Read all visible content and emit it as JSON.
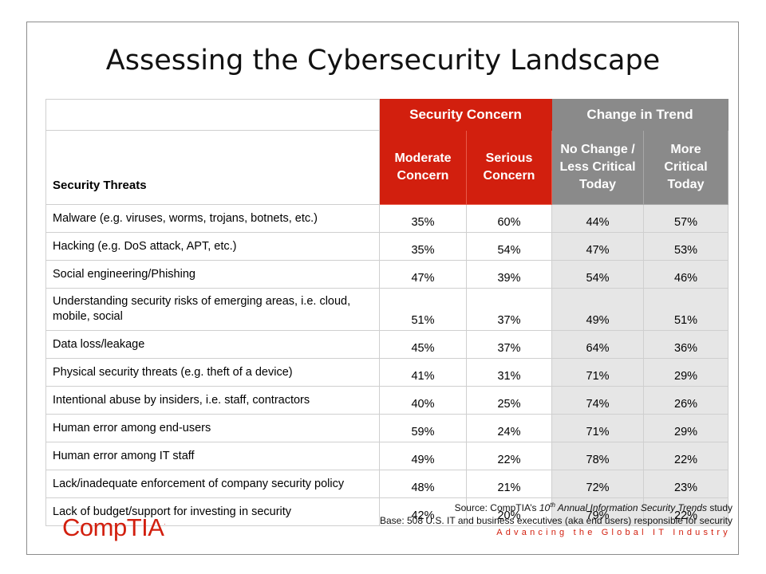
{
  "title": "Assessing the Cybersecurity Landscape",
  "table": {
    "groups": {
      "security_concern": "Security Concern",
      "change_in_trend": "Change in Trend"
    },
    "headers": {
      "threat": "Security Threats",
      "moderate": [
        "Moderate",
        "Concern"
      ],
      "serious": [
        "Serious",
        "Concern"
      ],
      "no_change": [
        "No Change /",
        "Less Critical",
        "Today"
      ],
      "more_critical": [
        "More",
        "Critical",
        "Today"
      ]
    },
    "rows": [
      {
        "threat": "Malware (e.g. viruses, worms, trojans, botnets, etc.)",
        "moderate": "35%",
        "serious": "60%",
        "no_change": "44%",
        "more": "57%"
      },
      {
        "threat": "Hacking (e.g. DoS attack, APT, etc.)",
        "moderate": "35%",
        "serious": "54%",
        "no_change": "47%",
        "more": "53%"
      },
      {
        "threat": "Social engineering/Phishing",
        "moderate": "47%",
        "serious": "39%",
        "no_change": "54%",
        "more": "46%"
      },
      {
        "threat": "Understanding security risks of emerging areas, i.e. cloud, mobile, social",
        "moderate": "51%",
        "serious": "37%",
        "no_change": "49%",
        "more": "51%"
      },
      {
        "threat": "Data loss/leakage",
        "moderate": "45%",
        "serious": "37%",
        "no_change": "64%",
        "more": "36%"
      },
      {
        "threat": "Physical security threats (e.g. theft of a device)",
        "moderate": "41%",
        "serious": "31%",
        "no_change": "71%",
        "more": "29%"
      },
      {
        "threat": "Intentional abuse by insiders, i.e. staff, contractors",
        "moderate": "40%",
        "serious": "25%",
        "no_change": "74%",
        "more": "26%"
      },
      {
        "threat": "Human error among end-users",
        "moderate": "59%",
        "serious": "24%",
        "no_change": "71%",
        "more": "29%"
      },
      {
        "threat": "Human error among IT staff",
        "moderate": "49%",
        "serious": "22%",
        "no_change": "78%",
        "more": "22%"
      },
      {
        "threat": "Lack/inadequate enforcement of company security policy",
        "moderate": "48%",
        "serious": "21%",
        "no_change": "72%",
        "more": "23%"
      },
      {
        "threat": "Lack of budget/support for investing in security",
        "moderate": "42%",
        "serious": "20%",
        "no_change": "79%",
        "more": "22%"
      }
    ]
  },
  "footer": {
    "source_prefix": "Source: CompTIA’s ",
    "source_num": "10",
    "source_sup": "th",
    "source_title": " Annual Information Security Trends",
    "source_suffix": " study",
    "base": "Base: 508 U.S. IT and business executives (aka end users) responsible for security",
    "tagline": "Advancing the Global IT Industry"
  },
  "logo": {
    "text": "CompTIA",
    "mark": "."
  },
  "colors": {
    "red": "#d21f0e",
    "gray": "#8a8a8a",
    "shade": "#e6e6e6"
  }
}
